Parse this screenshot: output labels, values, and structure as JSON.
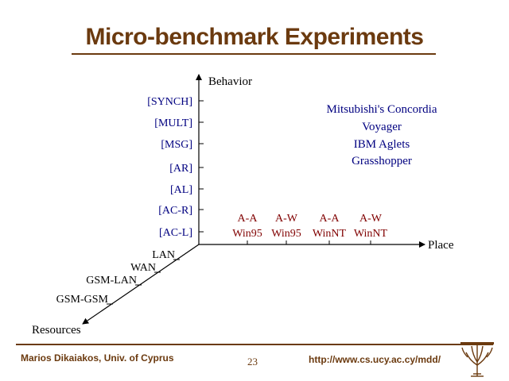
{
  "slide": {
    "title": "Micro-benchmark Experiments",
    "footer": {
      "author": "Marios Dikaiakos, Univ. of Cyprus",
      "page_number": "23",
      "url": "http://www.cs.ucy.ac.cy/mdd/"
    }
  },
  "diagram": {
    "axes": {
      "behavior": "Behavior",
      "place": "Place",
      "resources": "Resources"
    },
    "behavior_ticks": [
      "[SYNCH]",
      "[MULT]",
      "[MSG]",
      "[AR]",
      "[AL]",
      "[AC-R]",
      "[AC-L]"
    ],
    "place_ticks": [
      {
        "top": "A-A",
        "bottom": "Win95"
      },
      {
        "top": "A-W",
        "bottom": "Win95"
      },
      {
        "top": "A-A",
        "bottom": "WinNT"
      },
      {
        "top": "A-W",
        "bottom": "WinNT"
      }
    ],
    "resource_ticks": [
      "LAN",
      "WAN",
      "GSM-LAN",
      "GSM-GSM"
    ],
    "platforms": [
      "Mitsubishi's Concordia",
      "Voyager",
      "IBM Aglets",
      "Grasshopper"
    ],
    "colors": {
      "brown": "#6b3a0f",
      "navy": "#000080",
      "maroon": "#800000",
      "black": "#000000"
    }
  }
}
